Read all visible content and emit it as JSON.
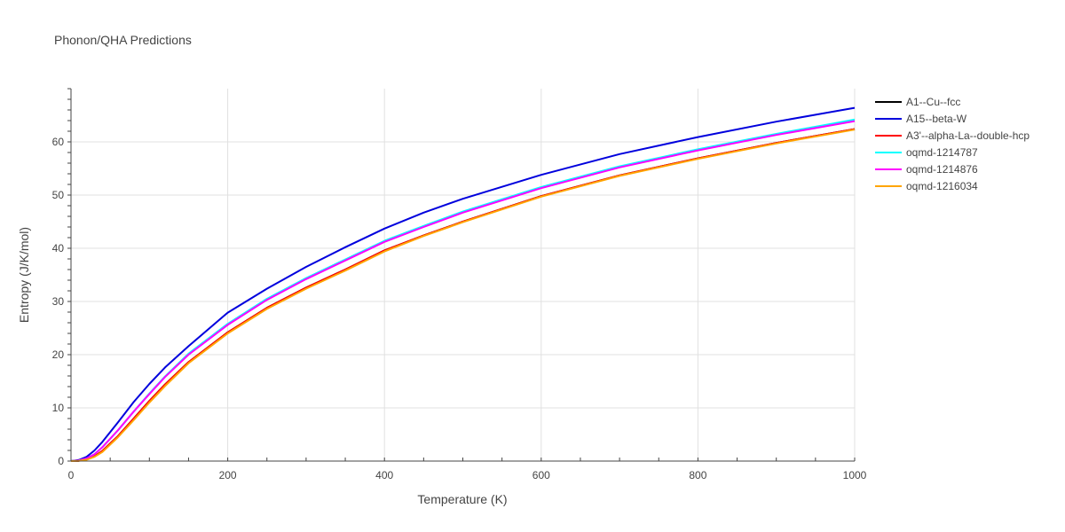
{
  "chart_data": {
    "type": "line",
    "title": "Phonon/QHA Predictions",
    "xlabel": "Temperature (K)",
    "ylabel": "Entropy (J/K/mol)",
    "xlim": [
      0,
      1000
    ],
    "ylim": [
      0,
      70
    ],
    "xticks": [
      0,
      200,
      400,
      600,
      800,
      1000
    ],
    "yticks": [
      0,
      10,
      20,
      30,
      40,
      50,
      60
    ],
    "grid": true,
    "legend_position": "right",
    "x": [
      0,
      10,
      20,
      30,
      40,
      60,
      80,
      100,
      120,
      150,
      200,
      250,
      300,
      350,
      400,
      450,
      500,
      600,
      700,
      800,
      900,
      1000
    ],
    "series": [
      {
        "name": "A1--Cu--fcc",
        "color": "#000000",
        "values": [
          0,
          0.05,
          0.3,
          0.9,
          1.9,
          4.7,
          8.0,
          11.3,
          14.4,
          18.6,
          24.2,
          28.8,
          32.6,
          36.0,
          39.6,
          42.4,
          45.0,
          49.8,
          53.7,
          56.9,
          59.8,
          62.4
        ]
      },
      {
        "name": "A15--beta-W",
        "color": "#0000dd",
        "values": [
          0,
          0.2,
          0.8,
          2.0,
          3.6,
          7.3,
          11.1,
          14.5,
          17.6,
          21.6,
          27.9,
          32.4,
          36.5,
          40.2,
          43.7,
          46.7,
          49.3,
          53.8,
          57.7,
          60.9,
          63.8,
          66.4
        ]
      },
      {
        "name": "A3'--alpha-La--double-hcp",
        "color": "#ff0000",
        "values": [
          0,
          0.05,
          0.3,
          0.9,
          1.9,
          4.7,
          8.0,
          11.3,
          14.4,
          18.6,
          24.2,
          28.8,
          32.6,
          36.0,
          39.6,
          42.4,
          45.0,
          49.8,
          53.7,
          56.9,
          59.8,
          62.4
        ]
      },
      {
        "name": "oqmd-1214787",
        "color": "#00ffff",
        "values": [
          0,
          0.1,
          0.5,
          1.3,
          2.6,
          5.8,
          9.3,
          12.7,
          15.9,
          20.2,
          25.8,
          30.5,
          34.4,
          37.9,
          41.4,
          44.2,
          46.9,
          51.5,
          55.4,
          58.6,
          61.5,
          64.2
        ]
      },
      {
        "name": "oqmd-1214876",
        "color": "#ff00ff",
        "values": [
          0,
          0.1,
          0.5,
          1.3,
          2.6,
          5.8,
          9.3,
          12.6,
          15.8,
          20.0,
          25.6,
          30.3,
          34.2,
          37.7,
          41.2,
          44.0,
          46.7,
          51.3,
          55.2,
          58.4,
          61.3,
          63.9
        ]
      },
      {
        "name": "oqmd-1216034",
        "color": "#ffa500",
        "values": [
          0,
          0.04,
          0.25,
          0.8,
          1.7,
          4.5,
          7.7,
          11.0,
          14.1,
          18.4,
          24.0,
          28.6,
          32.4,
          35.8,
          39.4,
          42.3,
          44.9,
          49.7,
          53.6,
          56.8,
          59.7,
          62.3
        ]
      }
    ]
  }
}
